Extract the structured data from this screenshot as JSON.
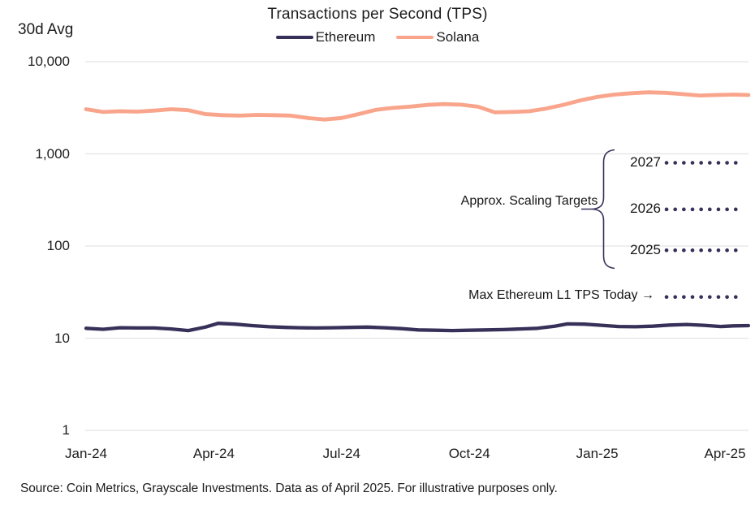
{
  "header": {
    "title": "Transactions per Second (TPS)",
    "left_axis_title": "30d Avg"
  },
  "legend": [
    {
      "name": "Ethereum",
      "color": "#37315A"
    },
    {
      "name": "Solana",
      "color": "#F9A58C"
    }
  ],
  "annotations": {
    "scaling_targets_label": "Approx. Scaling Targets",
    "max_tps_label": "Max Ethereum L1 TPS Today →"
  },
  "footer": {
    "source": "Source: Coin Metrics, Grayscale Investments. Data as of April 2025. For illustrative purposes only."
  },
  "colors": {
    "ethereum": "#37315A",
    "solana": "#F9A58C",
    "grid": "#E4E4E4",
    "annotation": "#37315A"
  },
  "chart_data": {
    "type": "line",
    "title": "Transactions per Second (TPS)",
    "ylabel": "30d Avg",
    "yscale": "log",
    "ylim": [
      1,
      10000
    ],
    "grid": "horizontal",
    "legend_position": "top-center",
    "yticks": [
      {
        "label": "10,000",
        "value": 10000
      },
      {
        "label": "1,000",
        "value": 1000
      },
      {
        "label": "100",
        "value": 100
      },
      {
        "label": "10",
        "value": 10
      },
      {
        "label": "1",
        "value": 1
      }
    ],
    "xticks": [
      {
        "label": "Jan-24",
        "month": 0
      },
      {
        "label": "Apr-24",
        "month": 3
      },
      {
        "label": "Jul-24",
        "month": 6
      },
      {
        "label": "Oct-24",
        "month": 9
      },
      {
        "label": "Jan-25",
        "month": 12
      },
      {
        "label": "Apr-25",
        "month": 15
      }
    ],
    "x_unit": "months since Jan-2024",
    "series": [
      {
        "name": "Ethereum",
        "color": "#37315A",
        "points": [
          [
            0,
            12.8
          ],
          [
            0.4,
            12.5
          ],
          [
            0.8,
            13.0
          ],
          [
            1.2,
            12.9
          ],
          [
            1.6,
            12.9
          ],
          [
            2,
            12.6
          ],
          [
            2.4,
            12.1
          ],
          [
            2.8,
            13.2
          ],
          [
            3.1,
            14.5
          ],
          [
            3.5,
            14.2
          ],
          [
            3.9,
            13.7
          ],
          [
            4.3,
            13.3
          ],
          [
            4.7,
            13.1
          ],
          [
            5,
            13.0
          ],
          [
            5.4,
            12.9
          ],
          [
            5.8,
            13.0
          ],
          [
            6.2,
            13.1
          ],
          [
            6.6,
            13.2
          ],
          [
            7,
            13.0
          ],
          [
            7.4,
            12.7
          ],
          [
            7.8,
            12.3
          ],
          [
            8.2,
            12.2
          ],
          [
            8.6,
            12.1
          ],
          [
            9,
            12.2
          ],
          [
            9.4,
            12.3
          ],
          [
            9.8,
            12.4
          ],
          [
            10.2,
            12.6
          ],
          [
            10.6,
            12.8
          ],
          [
            11,
            13.5
          ],
          [
            11.3,
            14.3
          ],
          [
            11.7,
            14.2
          ],
          [
            12.1,
            13.8
          ],
          [
            12.5,
            13.4
          ],
          [
            12.9,
            13.3
          ],
          [
            13.3,
            13.5
          ],
          [
            13.7,
            13.9
          ],
          [
            14.1,
            14.1
          ],
          [
            14.5,
            13.8
          ],
          [
            14.9,
            13.4
          ],
          [
            15.2,
            13.6
          ],
          [
            15.55,
            13.7
          ]
        ]
      },
      {
        "name": "Solana",
        "color": "#F9A58C",
        "points": [
          [
            0,
            3050
          ],
          [
            0.4,
            2850
          ],
          [
            0.8,
            2900
          ],
          [
            1.2,
            2870
          ],
          [
            1.6,
            2950
          ],
          [
            2,
            3050
          ],
          [
            2.4,
            2980
          ],
          [
            2.8,
            2700
          ],
          [
            3.2,
            2630
          ],
          [
            3.6,
            2600
          ],
          [
            4,
            2650
          ],
          [
            4.4,
            2630
          ],
          [
            4.8,
            2600
          ],
          [
            5.2,
            2450
          ],
          [
            5.6,
            2360
          ],
          [
            6,
            2450
          ],
          [
            6.4,
            2700
          ],
          [
            6.8,
            3000
          ],
          [
            7.2,
            3150
          ],
          [
            7.6,
            3250
          ],
          [
            8,
            3400
          ],
          [
            8.4,
            3470
          ],
          [
            8.8,
            3420
          ],
          [
            9.2,
            3250
          ],
          [
            9.6,
            2820
          ],
          [
            10,
            2850
          ],
          [
            10.4,
            2900
          ],
          [
            10.8,
            3100
          ],
          [
            11.2,
            3400
          ],
          [
            11.6,
            3800
          ],
          [
            12,
            4150
          ],
          [
            12.4,
            4400
          ],
          [
            12.8,
            4550
          ],
          [
            13.2,
            4650
          ],
          [
            13.6,
            4600
          ],
          [
            14,
            4450
          ],
          [
            14.4,
            4300
          ],
          [
            14.8,
            4350
          ],
          [
            15.2,
            4400
          ],
          [
            15.55,
            4350
          ]
        ]
      }
    ],
    "scaling_targets": [
      {
        "label": "2027",
        "tps": 800
      },
      {
        "label": "2026",
        "tps": 250
      },
      {
        "label": "2025",
        "tps": 90
      }
    ],
    "max_ethereum_l1_tps_today": {
      "tps": 28
    }
  }
}
